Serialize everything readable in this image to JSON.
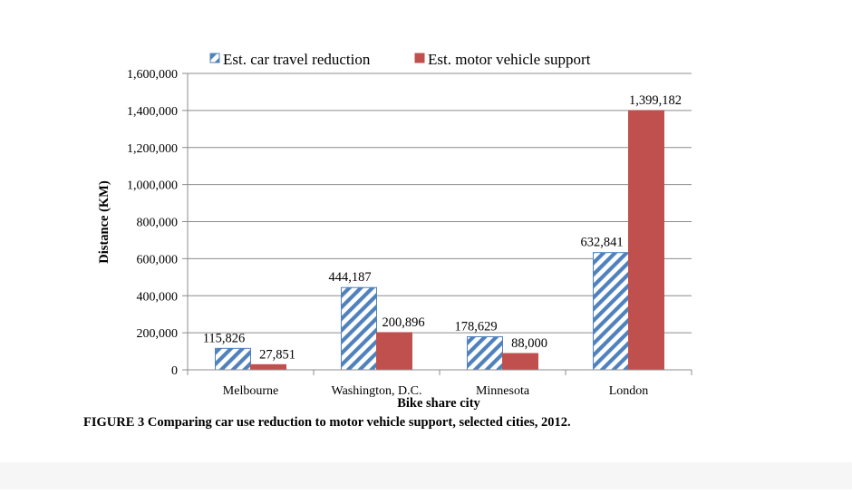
{
  "chart_data": {
    "type": "bar",
    "title": "",
    "xlabel": "Bike share city",
    "ylabel": "Distance (KM)",
    "ylim": [
      0,
      1600000
    ],
    "yticks": [
      0,
      200000,
      400000,
      600000,
      800000,
      1000000,
      1200000,
      1400000,
      1600000
    ],
    "ytick_labels": [
      "0",
      "200,000",
      "400,000",
      "600,000",
      "800,000",
      "1,000,000",
      "1,200,000",
      "1,400,000",
      "1,600,000"
    ],
    "categories": [
      "Melbourne",
      "Washington, D.C.",
      "Minnesota",
      "London"
    ],
    "series": [
      {
        "name": "Est. car travel reduction",
        "values": [
          115826,
          444187,
          178629,
          632841
        ],
        "labels": [
          "115,826",
          "444,187",
          "178,629",
          "632,841"
        ],
        "color": "#4f81bd",
        "pattern": "diagonal-stripes"
      },
      {
        "name": "Est. motor vehicle support",
        "values": [
          27851,
          200896,
          88000,
          1399182
        ],
        "labels": [
          "27,851",
          "200,896",
          "88,000",
          "1,399,182"
        ],
        "color": "#c0504d",
        "pattern": "solid"
      }
    ],
    "legend_position": "top"
  },
  "caption": "FIGURE 3 Comparing car use reduction to motor vehicle support, selected cities, 2012."
}
